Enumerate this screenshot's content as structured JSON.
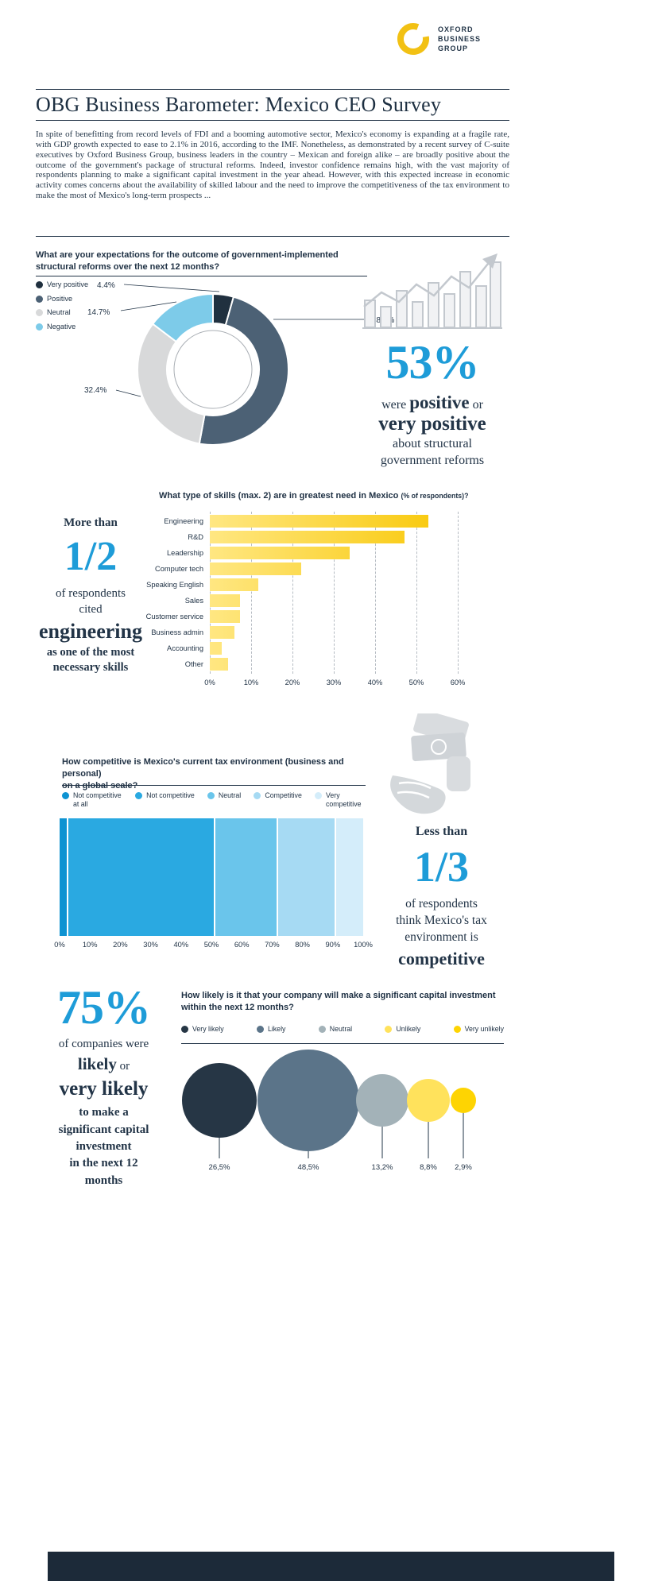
{
  "colors": {
    "accent": "#1e9cd8",
    "navy": "#223447",
    "footer": "#1c2a39"
  },
  "icons": {
    "logo": "obg-yellow-ring-icon",
    "reforms": "growth-chart-icon",
    "tax": "cash-money-icon"
  },
  "logo": {
    "line1": "OXFORD",
    "line2": "BUSINESS",
    "line3": "GROUP"
  },
  "header": {
    "title": "OBG Business Barometer: Mexico CEO Survey"
  },
  "intro": {
    "text": "In spite of benefitting from record levels of FDI and a booming automotive sector, Mexico's economy is expanding at a fragile rate, with GDP growth expected to ease to 2.1% in 2016, according to the IMF. Nonetheless, as demonstrated by a recent survey of C-suite executives by Oxford Business Group, business leaders in the country – Mexican and foreign alike – are broadly positive about the outcome of the government's package of structural reforms. Indeed, investor confidence remains high, with the vast majority of respondents planning to make a significant capital investment in the year ahead. However, with this expected increase in economic activity comes concerns about the availability of skilled labour and the need to improve the competitiveness of the tax environment to make the most of Mexico's long-term prospects ..."
  },
  "reforms": {
    "question_line1": "What are your expectations for the outcome of government-implemented",
    "question_line2": "structural reforms over the next 12 months?",
    "stat": "53%",
    "were": "were",
    "positive": "positive",
    "or": "or",
    "very_positive": "very positive",
    "about": "about structural",
    "gov": "government reforms"
  },
  "skills": {
    "question_main": "What type of skills (max. 2) are in greatest need in Mexico",
    "question_small": "(% of respondents)?",
    "more_than": "More than",
    "stat": "1/2",
    "line1": "of respondents",
    "line2": "cited",
    "line3": "engineering",
    "line4": "as one of the most",
    "line5": "necessary skills"
  },
  "tax": {
    "question_line1": "How competitive is Mexico's current tax environment (business and personal)",
    "question_line2": "on a global scale?",
    "less_than": "Less than",
    "stat": "1/3",
    "line1": "of respondents",
    "line2": "think Mexico's tax",
    "line3": "environment is",
    "line4": "competitive"
  },
  "investment": {
    "question_line1": "How likely is it that your company will make a significant capital investment",
    "question_line2": "within the next 12 months?",
    "stat": "75%",
    "line1": "of companies were",
    "likely": "likely",
    "or": "or",
    "very_likely": "very likely",
    "line3": "to make a",
    "line4": "significant capital",
    "line5": "investment",
    "line6": "in the next 12",
    "line7": "months"
  },
  "chart_data": [
    {
      "id": "reform-expectations",
      "type": "pie",
      "donut": true,
      "title": "What are your expectations for the outcome of government-implemented structural reforms over the next 12 months?",
      "unit": "%",
      "legend_position": "left",
      "segments": [
        {
          "label": "Very positive",
          "value": 4.4,
          "display": "4.4%",
          "color": "#20303f"
        },
        {
          "label": "Positive",
          "value": 48.5,
          "display": "48.5%",
          "color": "#4c6175"
        },
        {
          "label": "Neutral",
          "value": 32.4,
          "display": "32.4%",
          "color": "#d8d9da"
        },
        {
          "label": "Negative",
          "value": 14.7,
          "display": "14.7%",
          "color": "#7dcbe9"
        }
      ]
    },
    {
      "id": "skills-in-greatest-need",
      "type": "bar",
      "orientation": "horizontal",
      "title": "What type of skills (max. 2) are in greatest need in Mexico (% of respondents)?",
      "categories": [
        "Engineering",
        "R&D",
        "Leadership",
        "Computer tech",
        "Speaking English",
        "Sales",
        "Customer service",
        "Business admin",
        "Accounting",
        "Other"
      ],
      "values": [
        52.9,
        47.1,
        33.8,
        22.1,
        11.8,
        7.4,
        7.4,
        5.9,
        2.9,
        4.4
      ],
      "xlim": [
        0,
        60
      ],
      "x_ticks": [
        "0%",
        "10%",
        "20%",
        "30%",
        "40%",
        "50%",
        "60%"
      ],
      "grid": "dashed-vertical",
      "bar_gradient": [
        "#ffe782",
        "#f8c703"
      ]
    },
    {
      "id": "tax-environment-competitiveness",
      "type": "bar",
      "variant": "stacked-horizontal",
      "title": "How competitive is Mexico's current tax environment (business and personal) on a global scale?",
      "xlim": [
        0,
        100
      ],
      "x_ticks": [
        "0%",
        "10%",
        "20%",
        "30%",
        "40%",
        "50%",
        "60%",
        "70%",
        "80%",
        "90%",
        "100%"
      ],
      "segments": [
        {
          "label": "Not competitive at all",
          "value": 2.9,
          "color": "#0e93d2"
        },
        {
          "label": "Not competitive",
          "value": 48.5,
          "color": "#2aa9e1"
        },
        {
          "label": "Neutral",
          "value": 20.6,
          "color": "#6ac5eb"
        },
        {
          "label": "Competitive",
          "value": 19.1,
          "color": "#a6daf3"
        },
        {
          "label": "Very competitive",
          "value": 8.8,
          "color": "#d4edfa"
        }
      ]
    },
    {
      "id": "capital-investment-likelihood",
      "type": "bubble",
      "title": "How likely is it that your company will make a significant capital investment within the next 12 months?",
      "unit": "%",
      "points": [
        {
          "label": "Very likely",
          "value": 26.5,
          "display": "26,5%",
          "color": "#263645"
        },
        {
          "label": "Likely",
          "value": 48.5,
          "display": "48,5%",
          "color": "#5b7489"
        },
        {
          "label": "Neutral",
          "value": 13.2,
          "display": "13,2%",
          "color": "#a3b2b8"
        },
        {
          "label": "Unlikely",
          "value": 8.8,
          "display": "8,8%",
          "color": "#ffe25c"
        },
        {
          "label": "Very unlikely",
          "value": 2.9,
          "display": "2,9%",
          "color": "#fed402"
        }
      ]
    }
  ]
}
